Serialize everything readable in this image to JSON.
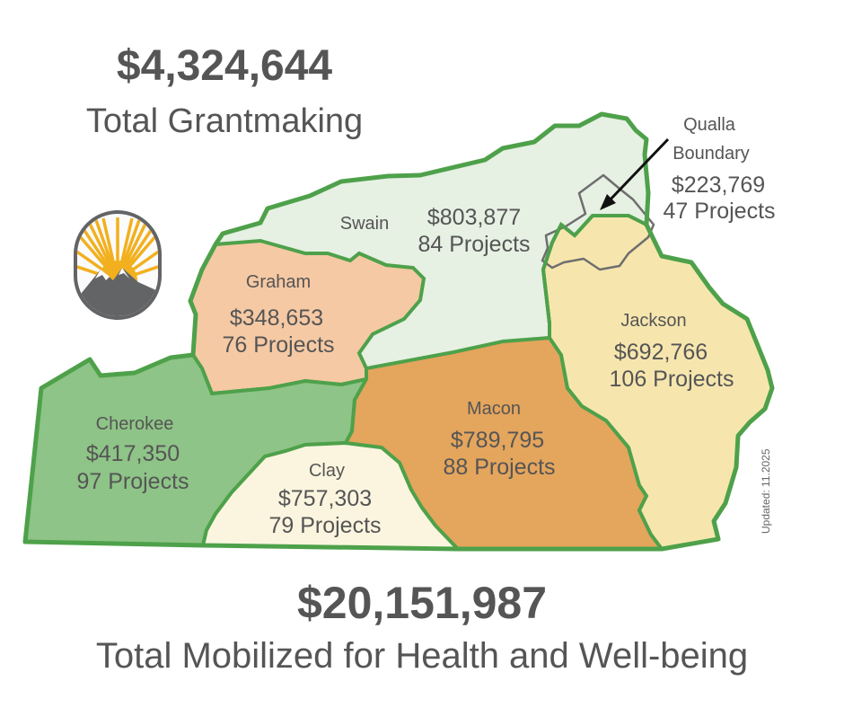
{
  "header": {
    "grantmaking_amount": "$4,324,644",
    "grantmaking_label": "Total Grantmaking"
  },
  "footer": {
    "mobilized_amount": "$20,151,987",
    "mobilized_label": "Total Mobilized for Health and Well-being"
  },
  "updated_note": "Updated: 11.2025",
  "colors": {
    "border": "#4ea14a",
    "swain": "#e6f0e3",
    "graham": "#f5c9a4",
    "cherokee": "#8ec487",
    "clay": "#fbf5df",
    "macon": "#e4a55d",
    "jackson": "#f6e6ae",
    "qualla_outline": "#6e6e6e",
    "text": "#555555"
  },
  "regions": {
    "swain": {
      "name": "Swain",
      "amount": "$803,877",
      "projects": "84 Projects"
    },
    "graham": {
      "name": "Graham",
      "amount": "$348,653",
      "projects": "76 Projects"
    },
    "cherokee": {
      "name": "Cherokee",
      "amount": "$417,350",
      "projects": "97 Projects"
    },
    "clay": {
      "name": "Clay",
      "amount": "$757,303",
      "projects": "79 Projects"
    },
    "macon": {
      "name": "Macon",
      "amount": "$789,795",
      "projects": "88 Projects"
    },
    "jackson": {
      "name": "Jackson",
      "amount": "$692,766",
      "projects": "106 Projects"
    },
    "qualla": {
      "name_line1": "Qualla",
      "name_line2": "Boundary",
      "amount": "$223,769",
      "projects": "47 Projects"
    }
  },
  "logo": {
    "icon": "sun-over-mountain-icon"
  }
}
